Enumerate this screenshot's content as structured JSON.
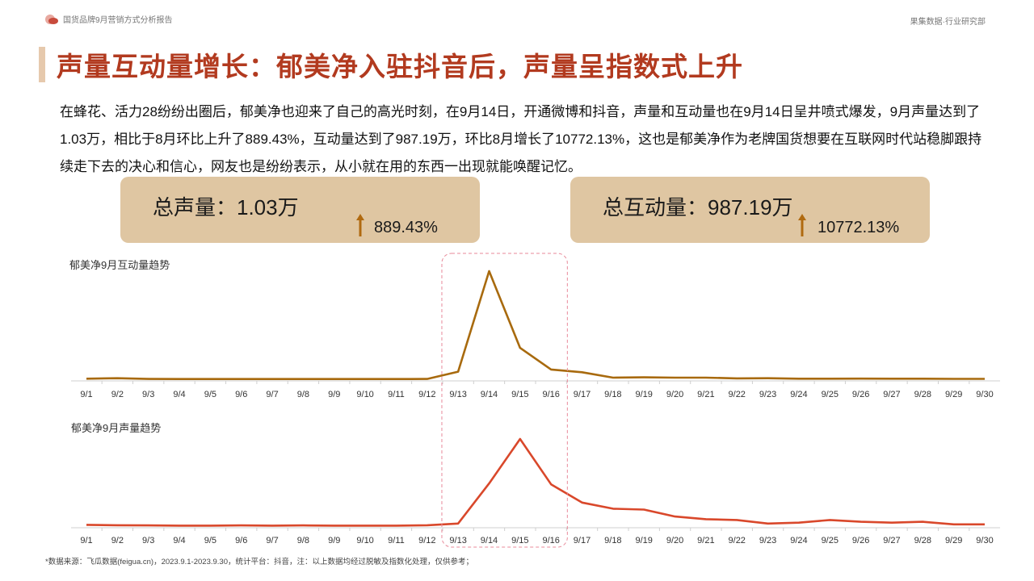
{
  "header": {
    "left_text": "国货品牌9月营销方式分析报告",
    "right_text": "果集数据·行业研究部"
  },
  "title": "声量互动量增长：郁美净入驻抖音后，声量呈指数式上升",
  "paragraph": "在蜂花、活力28纷纷出圈后，郁美净也迎来了自己的高光时刻，在9月14日，开通微博和抖音，声量和互动量也在9月14日呈井喷式爆发，9月声量达到了1.03万，相比于8月环比上升了889.43%，互动量达到了987.19万，环比8月增长了10772.13%，这也是郁美净作为老牌国货想要在互联网时代站稳脚跟持续走下去的决心和信心，网友也是纷纷表示，从小就在用的东西一出现就能唤醒记忆。",
  "kpis": {
    "volume": {
      "label": "总声量：1.03万",
      "change": "889.43%"
    },
    "interaction": {
      "label": "总互动量：987.19万",
      "change": "10772.13%"
    }
  },
  "colors": {
    "accent_title": "#b23a1f",
    "interaction_line": "#a86a0e",
    "volume_line": "#d9482b",
    "kpi_bg": "#dfc6a2",
    "highlight_box": "#e88a9a"
  },
  "chart_data": [
    {
      "type": "line",
      "title": "郁美净9月互动量趋势",
      "categories": [
        "9/1",
        "9/2",
        "9/3",
        "9/4",
        "9/5",
        "9/6",
        "9/7",
        "9/8",
        "9/9",
        "9/10",
        "9/11",
        "9/12",
        "9/13",
        "9/14",
        "9/15",
        "9/16",
        "9/17",
        "9/18",
        "9/19",
        "9/20",
        "9/21",
        "9/22",
        "9/23",
        "9/24",
        "9/25",
        "9/26",
        "9/27",
        "9/28",
        "9/29",
        "9/30"
      ],
      "values": [
        0.5,
        1,
        0.3,
        0.2,
        0.2,
        0.2,
        0.2,
        0.2,
        0.2,
        0.2,
        0.2,
        0.3,
        7,
        100,
        29,
        9,
        6.5,
        1.5,
        1.8,
        1.5,
        1.5,
        0.8,
        1,
        0.5,
        0.5,
        0.6,
        0.5,
        0.5,
        0.4,
        0.4
      ],
      "ylim": [
        0,
        100
      ],
      "grid": false
    },
    {
      "type": "line",
      "title": "郁美净9月声量趋势",
      "categories": [
        "9/1",
        "9/2",
        "9/3",
        "9/4",
        "9/5",
        "9/6",
        "9/7",
        "9/8",
        "9/9",
        "9/10",
        "9/11",
        "9/12",
        "9/13",
        "9/14",
        "9/15",
        "9/16",
        "9/17",
        "9/18",
        "9/19",
        "9/20",
        "9/21",
        "9/22",
        "9/23",
        "9/24",
        "9/25",
        "9/26",
        "9/27",
        "9/28",
        "9/29",
        "9/30"
      ],
      "values": [
        1.5,
        1,
        0.8,
        0.6,
        0.6,
        0.8,
        0.6,
        0.8,
        0.6,
        0.6,
        0.6,
        1,
        3,
        49,
        100,
        48,
        27,
        20,
        19,
        11,
        8,
        7,
        3,
        4,
        7,
        5,
        4,
        5,
        2,
        2
      ],
      "ylim": [
        0,
        100
      ],
      "grid": false,
      "highlight_range": [
        "9/13",
        "9/16"
      ]
    }
  ],
  "footnote": "*数据来源：飞瓜数据(feigua.cn)，2023.9.1-2023.9.30，统计平台：抖音，注：以上数据均经过脱敏及指数化处理，仅供参考；"
}
